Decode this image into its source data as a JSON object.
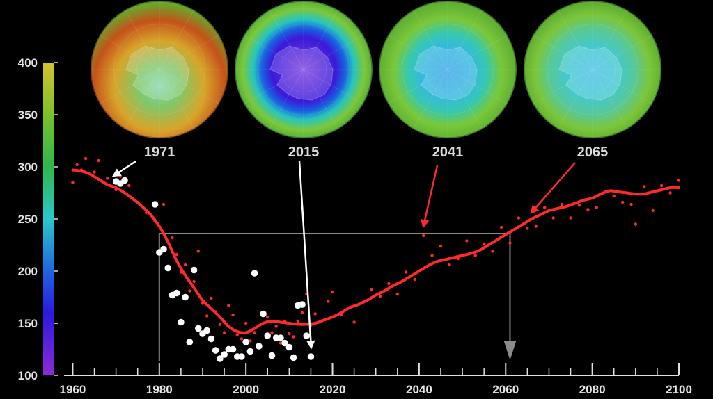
{
  "chart_data": {
    "type": "scatter",
    "title": "",
    "xlabel": "",
    "ylabel": "",
    "xlim": [
      1958,
      2100
    ],
    "ylim": [
      100,
      400
    ],
    "x_ticks": [
      "1960",
      "1980",
      "2000",
      "2020",
      "2040",
      "2060",
      "2080",
      "2100"
    ],
    "colorbar_ticks": [
      "100",
      "150",
      "200",
      "250",
      "300",
      "350",
      "400"
    ],
    "grid": false,
    "legend": "none",
    "colors": {
      "trend": "#ff2a2a",
      "model_points": "#ff2a2a",
      "observed_points": "#ffffff",
      "guide": "#8a8a8a",
      "arrow_light": "#ffffff",
      "arrow_accent": "#ff2a2a"
    },
    "snapshots": [
      {
        "year": "1971",
        "label": "1971",
        "hole": 0.0
      },
      {
        "year": "2015",
        "label": "2015",
        "hole": 1.0
      },
      {
        "year": "2041",
        "label": "2041",
        "hole": 0.55
      },
      {
        "year": "2065",
        "label": "2065",
        "hole": 0.35
      }
    ],
    "guide_level": 236,
    "guide_years": [
      1980,
      2061
    ],
    "series": [
      {
        "kind": "trend",
        "x": [
          1960,
          1962,
          1964,
          1966,
          1968,
          1970,
          1972,
          1974,
          1976,
          1978,
          1980,
          1982,
          1984,
          1986,
          1988,
          1990,
          1992,
          1994,
          1996,
          1998,
          2000,
          2002,
          2004,
          2006,
          2008,
          2010,
          2012,
          2014,
          2016,
          2018,
          2020,
          2022,
          2024,
          2026,
          2028,
          2030,
          2032,
          2034,
          2036,
          2038,
          2040,
          2042,
          2044,
          2046,
          2048,
          2050,
          2052,
          2054,
          2056,
          2058,
          2060,
          2062,
          2064,
          2066,
          2068,
          2070,
          2072,
          2074,
          2076,
          2078,
          2080,
          2082,
          2084,
          2086,
          2088,
          2090,
          2092,
          2094,
          2096,
          2098,
          2100
        ],
        "y": [
          297,
          296,
          293,
          288,
          283,
          280,
          275,
          269,
          262,
          254,
          243,
          228,
          210,
          196,
          184,
          172,
          164,
          156,
          147,
          142,
          141,
          145,
          150,
          152,
          151,
          150,
          149,
          149,
          150,
          153,
          156,
          160,
          165,
          168,
          172,
          177,
          181,
          186,
          190,
          195,
          200,
          205,
          209,
          211,
          213,
          215,
          217,
          220,
          225,
          230,
          235,
          240,
          245,
          250,
          254,
          258,
          260,
          262,
          265,
          268,
          270,
          274,
          277,
          276,
          275,
          274,
          274,
          276,
          278,
          280,
          280
        ]
      },
      {
        "kind": "model_points",
        "x": [
          1960,
          1961,
          1962,
          1963,
          1965,
          1966,
          1968,
          1970,
          1971,
          1973,
          1975,
          1977,
          1979,
          1981,
          1983,
          1984,
          1985,
          1986,
          1987,
          1988,
          1989,
          1990,
          1991,
          1992,
          1993,
          1994,
          1995,
          1996,
          1997,
          1998,
          1999,
          2000,
          2001,
          2002,
          2003,
          2005,
          2006,
          2007,
          2008,
          2009,
          2010,
          2011,
          2012,
          2013,
          2014,
          2015,
          2016,
          2017,
          2019,
          2020,
          2022,
          2024,
          2025,
          2027,
          2029,
          2031,
          2033,
          2035,
          2037,
          2039,
          2041,
          2043,
          2045,
          2047,
          2049,
          2051,
          2053,
          2055,
          2057,
          2059,
          2061,
          2063,
          2065,
          2067,
          2069,
          2071,
          2073,
          2075,
          2077,
          2079,
          2081,
          2083,
          2085,
          2087,
          2089,
          2090,
          2092,
          2094,
          2096,
          2098,
          2100
        ],
        "y": [
          285,
          302,
          297,
          308,
          295,
          306,
          289,
          278,
          291,
          282,
          266,
          256,
          248,
          264,
          232,
          216,
          199,
          206,
          181,
          190,
          219,
          169,
          157,
          174,
          161,
          149,
          141,
          167,
          158,
          139,
          135,
          150,
          133,
          141,
          128,
          156,
          141,
          147,
          131,
          152,
          140,
          137,
          152,
          160,
          178,
          148,
          159,
          151,
          171,
          180,
          158,
          165,
          151,
          170,
          182,
          176,
          188,
          178,
          199,
          192,
          234,
          215,
          224,
          206,
          212,
          229,
          215,
          226,
          219,
          242,
          227,
          251,
          241,
          243,
          261,
          251,
          264,
          251,
          263,
          259,
          261,
          276,
          272,
          266,
          264,
          245,
          281,
          258,
          282,
          275,
          287
        ]
      },
      {
        "kind": "observed_points",
        "x": [
          1970,
          1971,
          1972,
          1979,
          1980,
          1981,
          1982,
          1983,
          1984,
          1985,
          1986,
          1987,
          1988,
          1989,
          1990,
          1991,
          1992,
          1993,
          1994,
          1995,
          1996,
          1997,
          1998,
          1999,
          2000,
          2001,
          2002,
          2003,
          2004,
          2005,
          2006,
          2007,
          2008,
          2009,
          2010,
          2011,
          2012,
          2013,
          2014,
          2015
        ],
        "y": [
          286,
          284,
          287,
          264,
          218,
          221,
          203,
          177,
          179,
          151,
          175,
          132,
          201,
          145,
          140,
          143,
          135,
          124,
          116,
          120,
          125,
          125,
          118,
          118,
          132,
          123,
          198,
          128,
          159,
          138,
          119,
          136,
          136,
          131,
          127,
          117,
          167,
          168,
          138,
          118
        ]
      }
    ]
  }
}
